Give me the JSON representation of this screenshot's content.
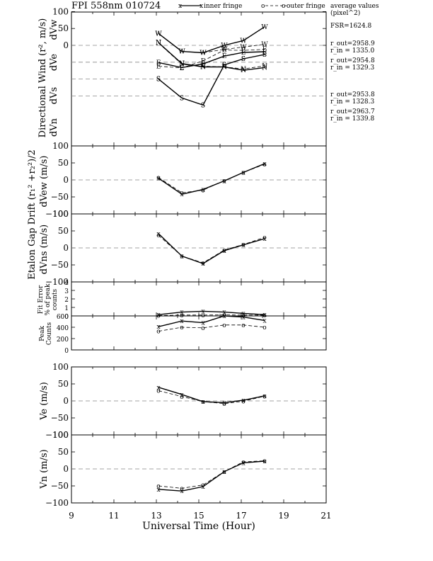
{
  "header": {
    "title": "FPI 558nm 010724",
    "legend_inner": "inner fringe",
    "legend_outer": "outer fringe",
    "avg_label_1": "average values",
    "avg_label_2": "(pixel^2)"
  },
  "annotations": {
    "fsr": "FSR=1624.8",
    "w_out": "r_out=2958.9",
    "w_in": "r_in = 1335.0",
    "e_out": "r_out=2954.8",
    "e_in": "r_in = 1329.3",
    "s_out": "r_out=2953.8",
    "s_in": "r_in = 1328.3",
    "n_out": "r_out=2963.7",
    "n_in": "r_in = 1339.8"
  },
  "colors": {
    "line": "#000000",
    "axis": "#000000",
    "zero_line": "#888888"
  },
  "chart_data": [
    {
      "id": "panel1",
      "type": "line",
      "ylabel": "Directional Wind (r², m/s)",
      "ylim": [
        -100,
        100
      ],
      "ytick_labels": [
        "100",
        "50",
        "0"
      ],
      "xlim": [
        9,
        21
      ],
      "sublabels": [
        "dVw",
        "dVe",
        "dVs",
        "dVn"
      ],
      "x": [
        13.1,
        14.2,
        15.2,
        16.2,
        17.1,
        18.1
      ],
      "series": [
        {
          "direction": "W",
          "marker": "W",
          "offset": 0,
          "inner": [
            35,
            -18,
            -22,
            0,
            14,
            55
          ],
          "outer": [
            35,
            -18,
            -22,
            -12,
            -5,
            3
          ]
        },
        {
          "direction": "E",
          "marker": "E",
          "offset": -50,
          "inner": [
            -1,
            -16,
            -5,
            18,
            29,
            31
          ],
          "outer": [
            -12,
            -17,
            4,
            36,
            35,
            38
          ]
        },
        {
          "direction": "S",
          "marker": "S",
          "offset": -100,
          "inner": [
            0,
            -56,
            -77,
            42,
            60,
            73
          ],
          "outer": [
            0,
            -56,
            -77,
            42,
            60,
            73
          ]
        },
        {
          "direction": "N",
          "marker": "N",
          "offset": -150,
          "inner": [
            158,
            96,
            86,
            86,
            76,
            84
          ],
          "outer": [
            157,
            94,
            88,
            86,
            80,
            89
          ]
        }
      ]
    },
    {
      "id": "panel2",
      "type": "line",
      "ylabel": "dVew (m/s)",
      "ylim": [
        -100,
        100
      ],
      "ytick_labels": [
        "100",
        "50",
        "0",
        "−50",
        "−100"
      ],
      "x": [
        13.1,
        14.2,
        15.2,
        16.2,
        17.1,
        18.1
      ],
      "inner": [
        5,
        -42,
        -28,
        -3,
        22,
        48
      ],
      "outer": [
        7,
        -38,
        -30,
        -2,
        22,
        46
      ]
    },
    {
      "id": "panel3",
      "type": "line",
      "ylabel": "dVns (m/s)",
      "ylim": [
        -100,
        100
      ],
      "ytick_labels": [
        "100",
        "50",
        "0",
        "−50",
        "−100"
      ],
      "x": [
        13.1,
        14.2,
        15.2,
        16.2,
        17.1,
        18.1
      ],
      "inner": [
        42,
        -24,
        -46,
        -8,
        9,
        27
      ],
      "outer": [
        37,
        -24,
        -44,
        -6,
        10,
        31
      ]
    },
    {
      "id": "panel4",
      "type": "line",
      "ylabel_lines": [
        "Fit Error",
        "% of peak",
        "counts"
      ],
      "ylim": [
        0,
        4
      ],
      "ytick_labels": [
        "4",
        "3",
        "2",
        "1",
        "0"
      ],
      "x": [
        13.1,
        14.2,
        15.2,
        16.2,
        17.1,
        18.1
      ],
      "inner": [
        0.15,
        0.45,
        0.55,
        0.45,
        0.3,
        0.15
      ],
      "outer": [
        0.05,
        0.1,
        0.1,
        0.12,
        0.1,
        0.08
      ]
    },
    {
      "id": "panel5",
      "type": "line",
      "ylabel_lines": [
        "Peak",
        "Counts"
      ],
      "ylim": [
        0,
        600
      ],
      "ytick_labels": [
        "600",
        "400",
        "200",
        "0"
      ],
      "x": [
        13.1,
        14.2,
        15.2,
        16.2,
        17.1,
        18.1
      ],
      "inner": [
        410,
        510,
        480,
        600,
        580,
        520
      ],
      "outer": [
        330,
        400,
        390,
        440,
        440,
        400
      ]
    },
    {
      "id": "panel6",
      "type": "line",
      "ylabel": "Ve (m/s)",
      "ylim": [
        -100,
        100
      ],
      "ytick_labels": [
        "100",
        "50",
        "0",
        "−50",
        "−100"
      ],
      "x": [
        13.1,
        14.2,
        15.2,
        16.2,
        17.1,
        18.1
      ],
      "inner": [
        40,
        19,
        -2,
        -5,
        2,
        15
      ],
      "outer": [
        30,
        13,
        -2,
        -8,
        -1,
        14
      ]
    },
    {
      "id": "panel7",
      "type": "line",
      "ylabel": "Vn (m/s)",
      "ylim": [
        -100,
        100
      ],
      "ytick_labels": [
        "100",
        "50",
        "0",
        "−50",
        "−100"
      ],
      "x": [
        13.1,
        14.2,
        15.2,
        16.2,
        17.1,
        18.1
      ],
      "inner": [
        -60,
        -65,
        -52,
        -8,
        18,
        23
      ],
      "outer": [
        -50,
        -57,
        -47,
        -8,
        21,
        24
      ]
    }
  ],
  "combined_labels": {
    "etalon": "Etalon Gap Drift (r₁² +r₂²)/2"
  },
  "xaxis": {
    "label": "Universal Time (Hour)",
    "ticks": [
      "9",
      "11",
      "13",
      "15",
      "17",
      "19",
      "21"
    ]
  }
}
